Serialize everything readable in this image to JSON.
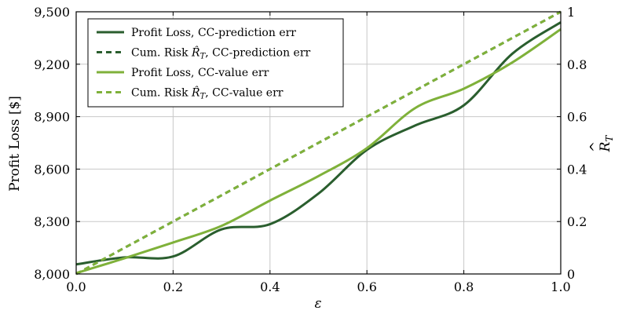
{
  "chart_data": {
    "type": "line",
    "x_label": "ε",
    "y_left_label": "Profit Loss [$]",
    "y_right_label": "R̂_T",
    "x_range": [
      0.0,
      1.0
    ],
    "y_left_range": [
      8000,
      9500
    ],
    "y_right_range": [
      0,
      1
    ],
    "x_ticks": [
      0.0,
      0.2,
      0.4,
      0.6,
      0.8,
      1.0
    ],
    "x_tick_labels": [
      "0.0",
      "0.2",
      "0.4",
      "0.6",
      "0.8",
      "1.0"
    ],
    "y_left_ticks": [
      8000,
      8300,
      8600,
      8900,
      9200,
      9500
    ],
    "y_left_tick_labels": [
      "8,000",
      "8,300",
      "8,600",
      "8,900",
      "9,200",
      "9,500"
    ],
    "y_right_ticks": [
      0,
      0.2,
      0.4,
      0.6,
      0.8,
      1
    ],
    "y_right_tick_labels": [
      "0",
      "0.2",
      "0.4",
      "0.6",
      "0.8",
      "1"
    ],
    "grid": true,
    "legend_position": "top-left",
    "colors": {
      "dark_green": "#2a5e2e",
      "light_green": "#7fb13a"
    },
    "series": [
      {
        "name": "Profit Loss, CC-prediction err",
        "legend_prefix": "Profit Loss, CC-prediction err",
        "axis": "left",
        "style": "solid",
        "color": "#2a5e2e",
        "x": [
          0.0,
          0.1,
          0.2,
          0.3,
          0.4,
          0.5,
          0.6,
          0.7,
          0.8,
          0.9,
          1.0
        ],
        "y": [
          8055,
          8095,
          8100,
          8255,
          8285,
          8460,
          8710,
          8850,
          8965,
          9260,
          9440
        ]
      },
      {
        "name": "Cum. Risk R̂_T, CC-prediction err",
        "legend_prefix": "Cum. Risk ",
        "legend_suffix": ", CC-prediction err",
        "axis": "right",
        "style": "dashed",
        "color": "#2a5e2e",
        "x": [
          0.0,
          1.0
        ],
        "y": [
          0.0,
          1.0
        ]
      },
      {
        "name": "Profit Loss, CC-value err",
        "legend_prefix": "Profit Loss, CC-value err",
        "axis": "left",
        "style": "solid",
        "color": "#7fb13a",
        "x": [
          0.0,
          0.1,
          0.2,
          0.3,
          0.4,
          0.5,
          0.6,
          0.7,
          0.8,
          0.9,
          1.0
        ],
        "y": [
          8005,
          8090,
          8180,
          8275,
          8420,
          8560,
          8720,
          8950,
          9060,
          9210,
          9400
        ]
      },
      {
        "name": "Cum. Risk R̂_T, CC-value err",
        "legend_prefix": "Cum. Risk ",
        "legend_suffix": ", CC-value err",
        "axis": "right",
        "style": "dashed",
        "color": "#7fb13a",
        "x": [
          0.0,
          1.0
        ],
        "y": [
          0.0,
          1.0
        ]
      }
    ]
  }
}
